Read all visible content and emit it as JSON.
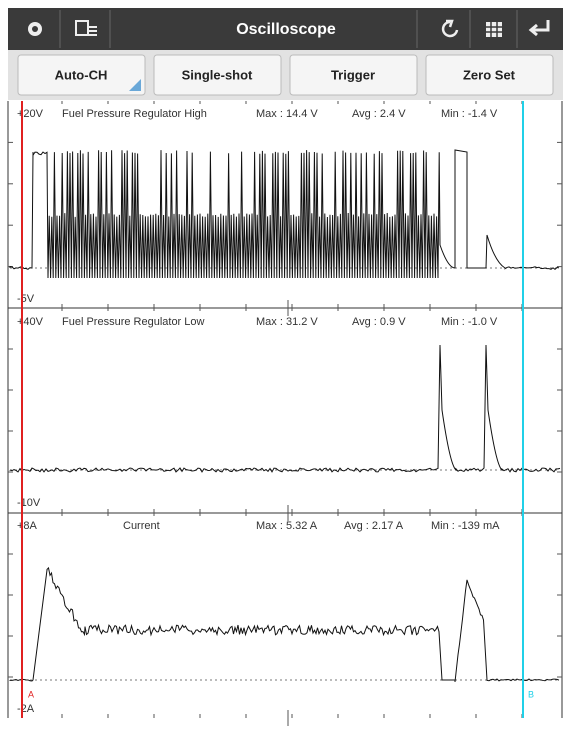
{
  "toolbar": {
    "title": "Oscilloscope"
  },
  "buttons": [
    "Auto-CH",
    "Single-shot",
    "Trigger",
    "Zero Set"
  ],
  "channels": [
    {
      "top": "+20V",
      "name": "Fuel Pressure Regulator High",
      "max": "Max : 14.4 V",
      "avg": "Avg : 2.4 V",
      "min": "Min : -1.4 V",
      "bottom": "-5V"
    },
    {
      "top": "+40V",
      "name": "Fuel Pressure Regulator Low",
      "max": "Max : 31.2 V",
      "avg": "Avg : 0.9 V",
      "min": "Min : -1.0 V",
      "bottom": "-10V"
    },
    {
      "top": "+8A",
      "name": "Current",
      "max": "Max : 5.32 A",
      "avg": "Avg : 2.17 A",
      "min": "Min : -139 mA",
      "bottom": "-2A"
    }
  ],
  "cursors": {
    "a": "A",
    "b": "B"
  }
}
